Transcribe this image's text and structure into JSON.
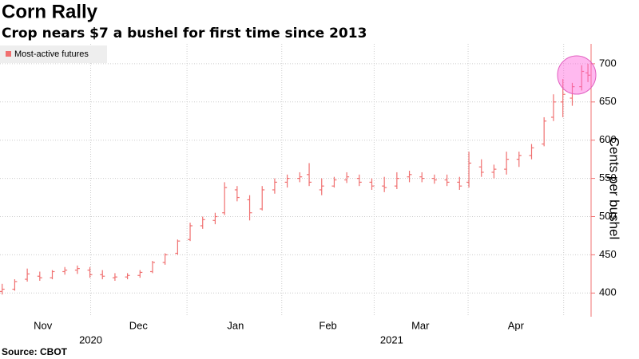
{
  "chart_data": {
    "type": "ohlc",
    "title": "Corn Rally",
    "subtitle": "Crop nears $7 a bushel for first time since 2013",
    "source": "Source: CBOT",
    "y_label": "Cents per bushel",
    "year_labels": [
      "2020",
      "2021"
    ],
    "grid": true,
    "series": [
      {
        "name": "Most-active futures",
        "color": "#f07070",
        "x": [
          2,
          6,
          10,
          14,
          18,
          22,
          26,
          30,
          34,
          38,
          42,
          46,
          50,
          54,
          58,
          62,
          66,
          70,
          73,
          77,
          81,
          85,
          89,
          93,
          97,
          100,
          104,
          108,
          112,
          116,
          120,
          124,
          128,
          132,
          136,
          140,
          144,
          148,
          151,
          155,
          159,
          163,
          167,
          171,
          175,
          178,
          181,
          184,
          187,
          189
        ],
        "open": [
          402,
          405,
          418,
          422,
          420,
          428,
          430,
          430,
          424,
          420,
          421,
          423,
          428,
          440,
          452,
          470,
          488,
          495,
          505,
          535,
          522,
          510,
          535,
          545,
          550,
          555,
          535,
          540,
          548,
          550,
          545,
          540,
          540,
          552,
          552,
          550,
          548,
          545,
          545,
          565,
          558,
          562,
          575,
          580,
          595,
          630,
          650,
          655,
          670,
          688
        ],
        "high": [
          412,
          418,
          432,
          428,
          430,
          434,
          436,
          434,
          430,
          426,
          426,
          430,
          442,
          452,
          470,
          492,
          500,
          505,
          545,
          540,
          528,
          540,
          550,
          555,
          558,
          570,
          550,
          552,
          558,
          555,
          550,
          552,
          558,
          560,
          558,
          555,
          555,
          552,
          585,
          575,
          568,
          585,
          585,
          595,
          630,
          660,
          680,
          675,
          698,
          700
        ],
        "low": [
          398,
          403,
          415,
          416,
          418,
          424,
          425,
          420,
          418,
          416,
          418,
          420,
          426,
          437,
          450,
          468,
          484,
          490,
          502,
          520,
          495,
          508,
          530,
          538,
          545,
          540,
          528,
          538,
          544,
          540,
          535,
          532,
          536,
          545,
          545,
          543,
          540,
          535,
          538,
          552,
          550,
          555,
          565,
          575,
          592,
          625,
          630,
          645,
          665,
          676
        ],
        "close": [
          405,
          415,
          425,
          420,
          428,
          430,
          432,
          424,
          422,
          421,
          423,
          427,
          440,
          450,
          468,
          488,
          496,
          500,
          538,
          525,
          505,
          535,
          545,
          550,
          552,
          545,
          540,
          548,
          552,
          545,
          540,
          538,
          550,
          555,
          550,
          548,
          545,
          540,
          570,
          558,
          562,
          575,
          580,
          590,
          625,
          650,
          660,
          670,
          690,
          685
        ]
      }
    ],
    "xlim": [
      1.3,
      190
    ],
    "xticks": [
      {
        "value": 15,
        "label": "Nov"
      },
      {
        "value": 45.5,
        "label": "Dec"
      },
      {
        "value": 76.5,
        "label": "Jan"
      },
      {
        "value": 106,
        "label": "Feb"
      },
      {
        "value": 135.5,
        "label": "Mar"
      },
      {
        "value": 166,
        "label": "Apr"
      }
    ],
    "ylim": [
      369,
      726
    ],
    "yticks": [
      400,
      450,
      500,
      550,
      600,
      650,
      700
    ]
  }
}
